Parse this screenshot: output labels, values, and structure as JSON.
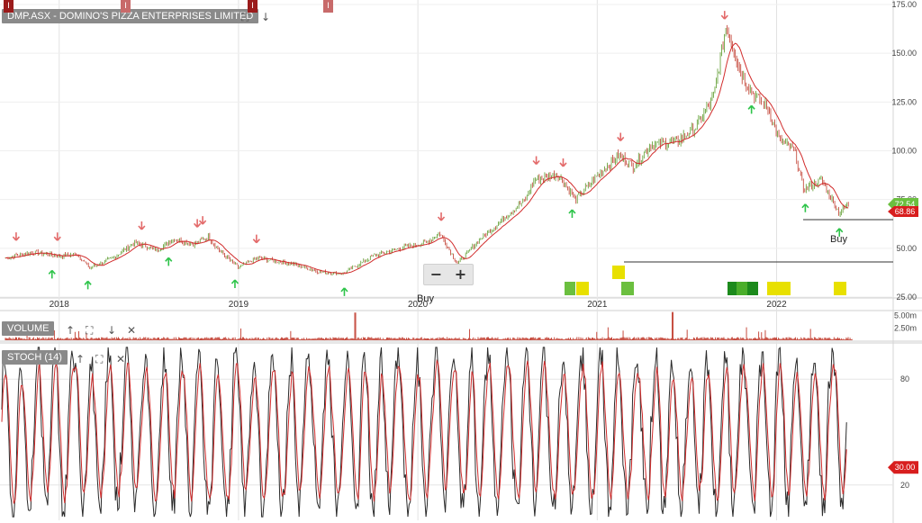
{
  "header": {
    "title": "DMP.ASX - DOMINO'S PIZZA ENTERPRISES LIMITED"
  },
  "panels": {
    "volume": "VOLUME",
    "stoch": "STOCH (14)"
  },
  "zoom": {
    "minus": "−",
    "plus": "+"
  },
  "signals": {
    "buy_label": "Buy",
    "buy_cut_label": "Buy"
  },
  "icons": {
    "fullscreen": "⛶",
    "down": "↓",
    "up": "↑",
    "close": "✕",
    "event": "I"
  },
  "colors": {
    "candle_up": "#5a9a2a",
    "candle_down": "#c0392b",
    "ma": "#d12c2c",
    "volume": "#c0392b",
    "stoch_k": "#2b2b2b",
    "stoch_d": "#d12c2c",
    "arrow_up": "#2ec44a",
    "arrow_down": "#e36a6a",
    "grid": "#e2e2e2",
    "price_tag": "#6bbf3f",
    "ma_tag": "#d81e1e",
    "event_marker": "#9b1b1b"
  },
  "chart_data": {
    "type": "line",
    "title": "DMP.ASX - DOMINO'S PIZZA ENTERPRISES LIMITED",
    "x_ticks": [
      "2018",
      "2019",
      "2020",
      "2021",
      "2022"
    ],
    "price": {
      "y_ticks": [
        25,
        50,
        75,
        100,
        125,
        150,
        175
      ],
      "y_tick_labels": [
        "25.00",
        "50.00",
        "75.00",
        "100.00",
        "125.00",
        "150.00",
        "175.00"
      ],
      "ylim": [
        25,
        175
      ],
      "last_price": 72.54,
      "last_price_label": "72.54",
      "ma_label": "68.86",
      "series_approx": [
        [
          2017.7,
          45
        ],
        [
          2017.85,
          48
        ],
        [
          2018.0,
          46
        ],
        [
          2018.1,
          47
        ],
        [
          2018.17,
          40
        ],
        [
          2018.3,
          45
        ],
        [
          2018.42,
          53
        ],
        [
          2018.55,
          49
        ],
        [
          2018.64,
          55
        ],
        [
          2018.75,
          52
        ],
        [
          2018.83,
          56
        ],
        [
          2018.9,
          48
        ],
        [
          2019.0,
          40
        ],
        [
          2019.1,
          45
        ],
        [
          2019.3,
          42
        ],
        [
          2019.45,
          38
        ],
        [
          2019.58,
          37
        ],
        [
          2019.75,
          46
        ],
        [
          2019.9,
          50
        ],
        [
          2020.05,
          53
        ],
        [
          2020.12,
          58
        ],
        [
          2020.22,
          42
        ],
        [
          2020.35,
          55
        ],
        [
          2020.5,
          67
        ],
        [
          2020.6,
          75
        ],
        [
          2020.65,
          85
        ],
        [
          2020.78,
          88
        ],
        [
          2020.88,
          75
        ],
        [
          2021.0,
          87
        ],
        [
          2021.12,
          98
        ],
        [
          2021.2,
          92
        ],
        [
          2021.3,
          103
        ],
        [
          2021.45,
          105
        ],
        [
          2021.55,
          112
        ],
        [
          2021.65,
          128
        ],
        [
          2021.72,
          165
        ],
        [
          2021.8,
          140
        ],
        [
          2021.88,
          128
        ],
        [
          2021.95,
          122
        ],
        [
          2022.02,
          105
        ],
        [
          2022.1,
          100
        ],
        [
          2022.15,
          80
        ],
        [
          2022.25,
          85
        ],
        [
          2022.35,
          68
        ],
        [
          2022.4,
          72.54
        ]
      ],
      "up_arrows_x": [
        2017.96,
        2018.16,
        2018.61,
        2018.98,
        2019.59,
        2020.86,
        2021.86,
        2022.16,
        2022.35
      ],
      "down_arrows_x": [
        2017.76,
        2017.99,
        2018.46,
        2018.77,
        2018.8,
        2019.1,
        2020.13,
        2020.66,
        2020.81,
        2021.13,
        2021.71
      ]
    },
    "volume": {
      "y_tick_labels": [
        "5.00m",
        "2.50m"
      ],
      "ylim": [
        0,
        6000000
      ]
    },
    "stoch": {
      "y_ticks": [
        20,
        80
      ],
      "y_tick_labels": [
        "20",
        "80"
      ],
      "ylim": [
        0,
        100
      ],
      "last_label": "30.00"
    }
  }
}
